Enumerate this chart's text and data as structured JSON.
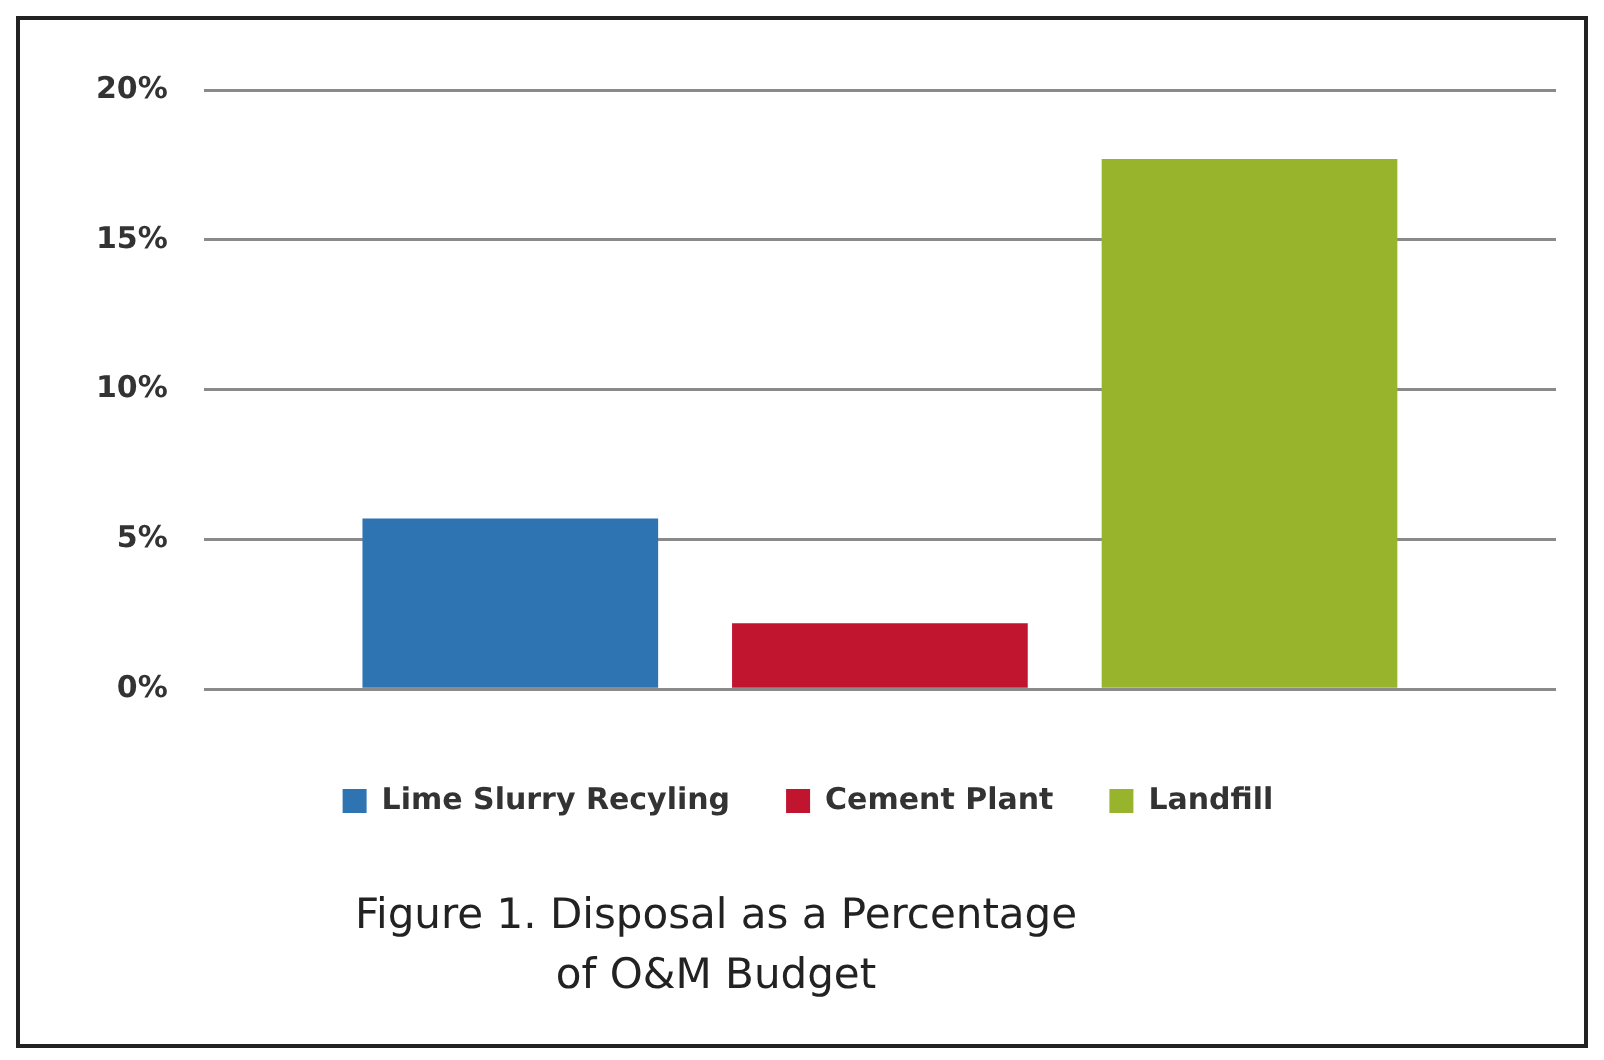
{
  "chart_data": {
    "type": "bar",
    "categories": [
      null
    ],
    "series": [
      {
        "name": "Lime Slurry Recyling",
        "color": "#2e73b2",
        "values": [
          5.7
        ]
      },
      {
        "name": "Cement Plant",
        "color": "#c0142f",
        "values": [
          2.2
        ]
      },
      {
        "name": "Landfill",
        "color": "#98b42c",
        "values": [
          17.7
        ]
      }
    ],
    "ylim": [
      0,
      20
    ],
    "yticks": [
      {
        "value": 0,
        "label": "0%"
      },
      {
        "value": 5,
        "label": "5%"
      },
      {
        "value": 10,
        "label": "10%"
      },
      {
        "value": 15,
        "label": "15%"
      },
      {
        "value": 20,
        "label": "20%"
      }
    ],
    "grid": "y",
    "legend": "bottom",
    "annotations": [
      "Figure 1. Disposal as a Percentage of O&M Budget"
    ]
  }
}
